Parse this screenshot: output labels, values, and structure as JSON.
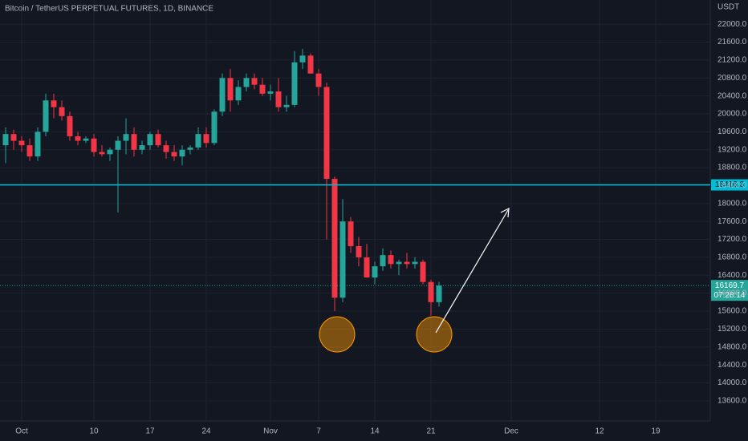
{
  "chart_data": {
    "type": "candlestick",
    "title": "Bitcoin / TetherUS PERPETUAL FUTURES, 1D, BINANCE",
    "y_axis_label": "USDT",
    "up_color": "#26a69a",
    "down_color": "#f23645",
    "grid": true,
    "x": [
      -2,
      -1,
      0,
      1,
      2,
      3,
      4,
      5,
      6,
      7,
      8,
      9,
      10,
      11,
      12,
      13,
      14,
      15,
      16,
      17,
      18,
      19,
      20,
      21,
      22,
      23,
      24,
      25,
      26,
      27,
      28,
      29,
      30,
      31,
      32,
      33,
      34,
      35,
      36,
      37,
      38,
      39,
      40,
      41,
      42,
      43,
      44,
      45,
      46,
      47,
      48,
      49,
      50,
      51,
      52
    ],
    "open": [
      19300,
      19550,
      19400,
      19300,
      19050,
      19600,
      20300,
      20150,
      19950,
      19500,
      19400,
      19450,
      19150,
      19100,
      19200,
      19400,
      19550,
      19200,
      19300,
      19550,
      19300,
      19150,
      19050,
      19200,
      19250,
      19550,
      19350,
      20050,
      20800,
      20300,
      20600,
      20800,
      20650,
      20450,
      20500,
      20150,
      20200,
      21150,
      21300,
      20900,
      20600,
      18550,
      15900,
      17600,
      17050,
      16800,
      16350,
      16600,
      16850,
      16650,
      16700,
      16650,
      16700,
      16250,
      15800
    ],
    "high": [
      19700,
      19650,
      19500,
      19450,
      19700,
      20450,
      20450,
      20300,
      20050,
      19600,
      19500,
      19550,
      19300,
      19250,
      19500,
      19900,
      19700,
      19400,
      19600,
      19650,
      19400,
      19300,
      19300,
      19300,
      19700,
      19700,
      20100,
      20900,
      21000,
      20750,
      20900,
      20900,
      20800,
      20650,
      20800,
      20400,
      21400,
      21450,
      21350,
      21000,
      20700,
      18600,
      18100,
      17700,
      17250,
      17100,
      16700,
      17000,
      16950,
      16750,
      16900,
      16800,
      16750,
      16300,
      16250
    ],
    "low": [
      18900,
      19200,
      19150,
      18950,
      18950,
      19500,
      19900,
      19850,
      19400,
      19300,
      19350,
      19050,
      19050,
      18950,
      17800,
      19100,
      19050,
      19100,
      19200,
      19250,
      19000,
      18950,
      18850,
      19100,
      19200,
      19250,
      19300,
      19950,
      20050,
      20200,
      20500,
      20550,
      20400,
      20300,
      20050,
      20050,
      20150,
      21000,
      20900,
      20400,
      17200,
      15600,
      15800,
      16900,
      16600,
      16350,
      16200,
      16500,
      16550,
      16400,
      16550,
      16550,
      16200,
      15500,
      15700
    ],
    "close": [
      19550,
      19400,
      19300,
      19050,
      19600,
      20300,
      20150,
      19950,
      19500,
      19400,
      19450,
      19150,
      19100,
      19200,
      19400,
      19550,
      19200,
      19300,
      19550,
      19300,
      19150,
      19050,
      19200,
      19250,
      19550,
      19350,
      20050,
      20800,
      20300,
      20600,
      20800,
      20650,
      20450,
      20500,
      20150,
      20200,
      21150,
      21300,
      20900,
      20600,
      18550,
      15900,
      17600,
      17050,
      16800,
      16350,
      16600,
      16850,
      16650,
      16700,
      16650,
      16700,
      16250,
      15800,
      16169.7
    ],
    "xlim": [
      -2.7,
      85.8
    ],
    "xticks": [
      {
        "value": 0,
        "label": "Oct"
      },
      {
        "value": 9,
        "label": "10"
      },
      {
        "value": 16,
        "label": "17"
      },
      {
        "value": 23,
        "label": "24"
      },
      {
        "value": 31,
        "label": "Nov"
      },
      {
        "value": 37,
        "label": "7"
      },
      {
        "value": 44,
        "label": "14"
      },
      {
        "value": 51,
        "label": "21"
      },
      {
        "value": 61,
        "label": "Dec"
      },
      {
        "value": 72,
        "label": "12"
      },
      {
        "value": 79,
        "label": "19"
      }
    ],
    "ylim": [
      13150,
      22540
    ],
    "yticks": [
      {
        "value": 13600,
        "label": "13600.0"
      },
      {
        "value": 14000,
        "label": "14000.0"
      },
      {
        "value": 14400,
        "label": "14400.0"
      },
      {
        "value": 14800,
        "label": "14800.0"
      },
      {
        "value": 15200,
        "label": "15200.0"
      },
      {
        "value": 15600,
        "label": "15600.0"
      },
      {
        "value": 16000,
        "label": "16000.0"
      },
      {
        "value": 16400,
        "label": "16400.0"
      },
      {
        "value": 16800,
        "label": "16800.0"
      },
      {
        "value": 17200,
        "label": "17200.0"
      },
      {
        "value": 17600,
        "label": "17600.0"
      },
      {
        "value": 18000,
        "label": "18000.0"
      },
      {
        "value": 18400,
        "label": "18400.0"
      },
      {
        "value": 18800,
        "label": "18800.0"
      },
      {
        "value": 19200,
        "label": "19200.0"
      },
      {
        "value": 19600,
        "label": "19600.0"
      },
      {
        "value": 20000,
        "label": "20000.0"
      },
      {
        "value": 20400,
        "label": "20400.0"
      },
      {
        "value": 20800,
        "label": "20800.0"
      },
      {
        "value": 21200,
        "label": "21200.0"
      },
      {
        "value": 21600,
        "label": "21600.0"
      },
      {
        "value": 22000,
        "label": "22000.0"
      }
    ],
    "hline": {
      "value": 18416.3,
      "color": "#00bcd4"
    },
    "last_price": 16169.7,
    "countdown": "07:28:14"
  }
}
